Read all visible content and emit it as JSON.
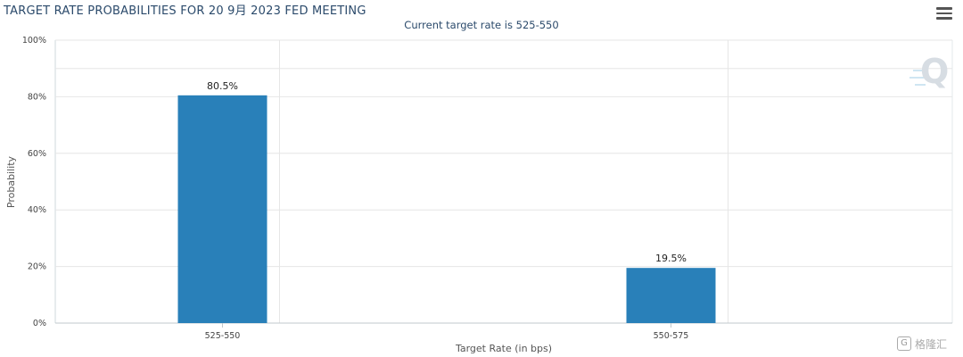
{
  "header": {
    "title": "TARGET RATE PROBABILITIES FOR 20 9月 2023 FED MEETING",
    "subtitle": "Current target rate is 525-550"
  },
  "chart_data": {
    "type": "bar",
    "title": "TARGET RATE PROBABILITIES FOR 20 9月 2023 FED MEETING",
    "subtitle": "Current target rate is 525-550",
    "categories": [
      "525-550",
      "550-575"
    ],
    "values": [
      80.5,
      19.5
    ],
    "data_labels": [
      "80.5%",
      "19.5%"
    ],
    "xlabel": "Target Rate (in bps)",
    "ylabel": "Probability",
    "ylim": [
      0,
      100
    ],
    "yticks": [
      0,
      20,
      40,
      60,
      80,
      100
    ],
    "ytick_labels": [
      "0%",
      "20%",
      "40%",
      "60%",
      "80%",
      "100%"
    ],
    "grid": true,
    "bar_color": "#2980b9",
    "legend": "none"
  },
  "icons": {
    "menu": "hamburger-menu-icon",
    "logo": "q-logo-icon",
    "watermark": "gelonghui-watermark-icon"
  },
  "watermark": {
    "glyph": "G",
    "text": "格隆汇"
  }
}
